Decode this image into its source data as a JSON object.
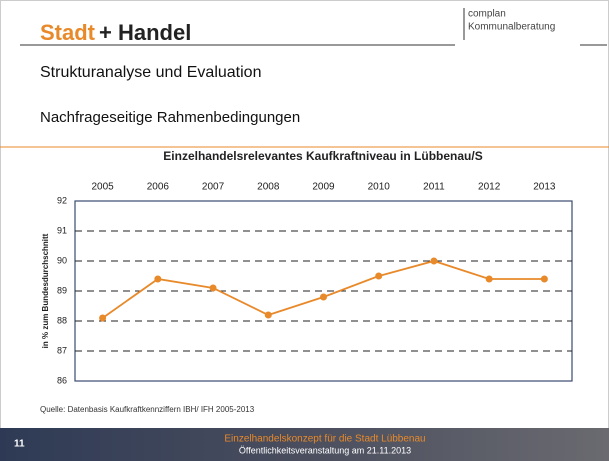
{
  "header": {
    "logo_part1": "Stadt",
    "logo_part2": "+ Handel",
    "company_line1": "complan",
    "company_line2": "Kommunalberatung"
  },
  "slide_title": "Strukturanalyse und Evaluation",
  "slide_subtitle": "Nachfrageseitige Rahmenbedingungen",
  "chart_data": {
    "type": "line",
    "title": "Einzelhandelsrelevantes Kaufkraftniveau in Lübbenau/S",
    "y_label": "in % zum Bundesdurchschnitt",
    "categories": [
      "2005",
      "2006",
      "2007",
      "2008",
      "2009",
      "2010",
      "2011",
      "2012",
      "2013"
    ],
    "values": [
      88.1,
      89.4,
      89.1,
      88.2,
      88.8,
      89.5,
      90.0,
      89.4,
      89.4
    ],
    "color": "#e8892a",
    "ylim": [
      86,
      92
    ],
    "yticks": [
      86,
      87,
      88,
      89,
      90,
      91,
      92
    ],
    "grid": true
  },
  "source": "Quelle:   Datenbasis Kaufkraftkennziffern IBH/ IFH 2005-2013",
  "footer": {
    "page": "11",
    "title": "Einzelhandelskonzept für die Stadt Lübbenau",
    "subtitle": "Öffentlichkeitsveranstaltung am 21.11.2013"
  }
}
